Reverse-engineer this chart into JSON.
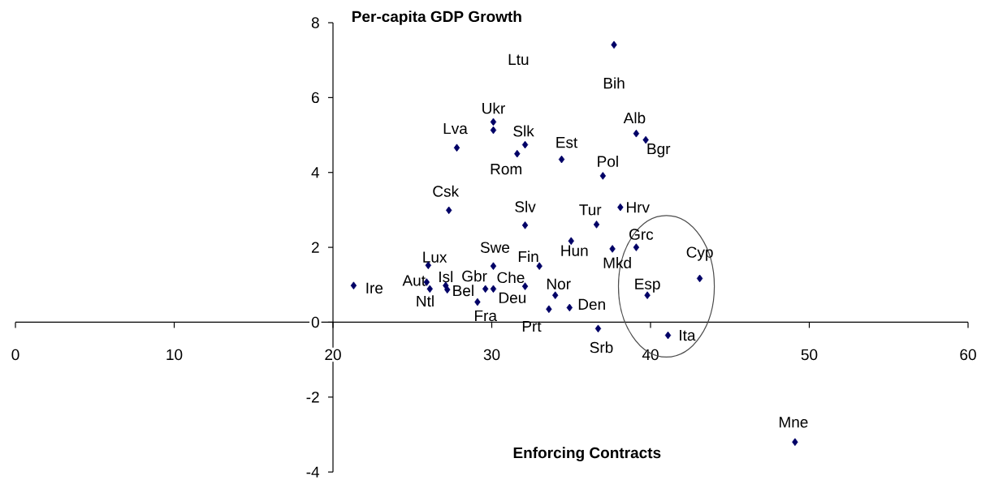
{
  "chart_data": {
    "type": "scatter",
    "ylabel": "Per-capita GDP Growth",
    "xlabel": "Enforcing Contracts",
    "x": [
      21.3,
      25.9,
      26.1,
      26.0,
      27.1,
      27.2,
      27.3,
      27.8,
      29.1,
      29.6,
      30.1,
      30.1,
      30.1,
      30.1,
      31.6,
      32.1,
      32.1,
      32.1,
      33.0,
      33.6,
      34.0,
      34.4,
      34.9,
      35.0,
      36.6,
      36.7,
      37.0,
      37.6,
      37.7,
      38.1,
      39.1,
      39.1,
      39.7,
      39.8,
      41.1,
      43.1,
      49.1
    ],
    "values": [
      0.98,
      1.07,
      0.89,
      1.52,
      0.98,
      0.87,
      2.99,
      4.66,
      0.54,
      0.89,
      0.89,
      1.5,
      5.35,
      5.13,
      4.5,
      0.96,
      2.59,
      4.74,
      1.5,
      0.35,
      0.72,
      4.35,
      0.39,
      2.17,
      2.61,
      -0.17,
      3.91,
      1.96,
      7.41,
      3.07,
      2.0,
      5.04,
      4.87,
      0.72,
      -0.35,
      1.17,
      -3.2
    ],
    "color": "#000066",
    "marker": "diamond",
    "xlim": [
      0,
      60
    ],
    "ylim": [
      -4,
      8
    ],
    "xticks": [
      0,
      10,
      20,
      30,
      40,
      50,
      60
    ],
    "yticks": [
      -4,
      -2,
      0,
      2,
      4,
      6,
      8
    ],
    "annotations": [
      "Ltu",
      {
        "text": "Bih",
        "x": 37.7,
        "y": 7.41
      },
      {
        "text": "Ukr",
        "x": 30.1,
        "y": 5.35
      },
      {
        "text": "Lva",
        "x": 27.8,
        "y": 4.66
      },
      {
        "text": "Slk",
        "x": 32.1,
        "y": 4.74
      },
      {
        "text": "Alb",
        "x": 39.1,
        "y": 5.04
      },
      {
        "text": "Est",
        "x": 34.4,
        "y": 4.35
      },
      {
        "text": "Bgr",
        "x": 39.7,
        "y": 4.87
      },
      {
        "text": "Pol",
        "x": 37.0,
        "y": 3.91
      },
      {
        "text": "Rom",
        "x": 31.6,
        "y": 4.5
      },
      {
        "text": "Csk",
        "x": 27.3,
        "y": 2.99
      },
      {
        "text": "Slv",
        "x": 32.1,
        "y": 2.59
      },
      {
        "text": "Tur",
        "x": 36.6,
        "y": 2.61
      },
      {
        "text": "Hrv",
        "x": 38.1,
        "y": 3.07
      },
      {
        "text": "Grc",
        "x": 39.1,
        "y": 2.0
      },
      {
        "text": "Hun",
        "x": 35.0,
        "y": 2.17
      },
      {
        "text": "Mkd",
        "x": 37.6,
        "y": 1.96
      },
      {
        "text": "Cyp",
        "x": 43.1,
        "y": 1.17
      },
      {
        "text": "Lux",
        "x": 26.0,
        "y": 1.52
      },
      {
        "text": "Swe",
        "x": 30.1,
        "y": 1.5
      },
      {
        "text": "Fin",
        "x": 33.0,
        "y": 1.5
      },
      {
        "text": "Aut",
        "x": 25.9,
        "y": 1.07
      },
      {
        "text": "Isl",
        "x": 27.1,
        "y": 0.98
      },
      {
        "text": "Gbr",
        "x": 29.6,
        "y": 0.89
      },
      {
        "text": "Che",
        "x": 32.1,
        "y": 0.96
      },
      {
        "text": "Bel",
        "x": 27.2,
        "y": 0.87
      },
      {
        "text": "Ire",
        "x": 21.3,
        "y": 0.98
      },
      {
        "text": "Ntl",
        "x": 26.1,
        "y": 0.89
      },
      {
        "text": "Deu",
        "x": 30.1,
        "y": 0.89
      },
      {
        "text": "Nor",
        "x": 34.0,
        "y": 0.72
      },
      {
        "text": "Esp",
        "x": 39.8,
        "y": 0.72
      },
      {
        "text": "Den",
        "x": 34.9,
        "y": 0.39
      },
      {
        "text": "Fra",
        "x": 29.1,
        "y": 0.54
      },
      {
        "text": "Prt",
        "x": 33.6,
        "y": 0.35
      },
      {
        "text": "Srb",
        "x": 36.7,
        "y": -0.17
      },
      {
        "text": "Ita",
        "x": 41.1,
        "y": -0.35
      },
      {
        "text": "Mne",
        "x": 49.1,
        "y": -3.2
      }
    ]
  }
}
